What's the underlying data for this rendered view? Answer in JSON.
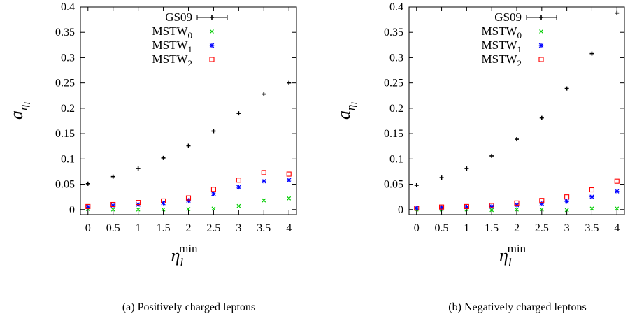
{
  "chart_data": [
    {
      "type": "scatter",
      "caption": "(a) Positively charged leptons",
      "xlabel_main": "η",
      "xlabel_sub": "l",
      "xlabel_sup": "min",
      "ylabel_main": "a",
      "ylabel_sub": "η",
      "ylabel_subsub": "l",
      "xlim": [
        -0.15,
        4.15
      ],
      "ylim": [
        -0.01,
        0.4
      ],
      "xticks": [
        "0",
        "0.5",
        "1",
        "1.5",
        "2",
        "2.5",
        "3",
        "3.5",
        "4"
      ],
      "yticks": [
        "0",
        "0.05",
        "0.1",
        "0.15",
        "0.2",
        "0.25",
        "0.3",
        "0.35",
        "0.4"
      ],
      "legend": [
        {
          "base": "GS09",
          "sub": ""
        },
        {
          "base": "MSTW",
          "sub": "0"
        },
        {
          "base": "MSTW",
          "sub": "1"
        },
        {
          "base": "MSTW",
          "sub": "2"
        }
      ],
      "legend_position": "top-center",
      "series": [
        {
          "marker": "plus-errorbar",
          "color": "#000000",
          "x": [
            0,
            0.5,
            1,
            1.5,
            2,
            2.5,
            3,
            3.5,
            4
          ],
          "y": [
            0.051,
            0.065,
            0.081,
            0.102,
            0.126,
            0.155,
            0.19,
            0.228,
            0.25
          ]
        },
        {
          "marker": "cross",
          "color": "#00cc00",
          "x": [
            0,
            0.5,
            1,
            1.5,
            2,
            2.5,
            3,
            3.5,
            4
          ],
          "y": [
            0.001,
            0.0,
            0.0,
            0.0,
            0.001,
            0.002,
            0.007,
            0.018,
            0.022
          ]
        },
        {
          "marker": "star",
          "color": "#0000ff",
          "x": [
            0,
            0.5,
            1,
            1.5,
            2,
            2.5,
            3,
            3.5,
            4
          ],
          "y": [
            0.005,
            0.008,
            0.01,
            0.013,
            0.018,
            0.031,
            0.044,
            0.056,
            0.058
          ]
        },
        {
          "marker": "square",
          "color": "#ff0000",
          "x": [
            0,
            0.5,
            1,
            1.5,
            2,
            2.5,
            3,
            3.5,
            4
          ],
          "y": [
            0.006,
            0.01,
            0.014,
            0.017,
            0.023,
            0.04,
            0.058,
            0.073,
            0.07
          ]
        }
      ]
    },
    {
      "type": "scatter",
      "caption": "(b) Negatively charged leptons",
      "xlabel_main": "η",
      "xlabel_sub": "l",
      "xlabel_sup": "min",
      "ylabel_main": "a",
      "ylabel_sub": "η",
      "ylabel_subsub": "l",
      "xlim": [
        -0.15,
        4.15
      ],
      "ylim": [
        -0.01,
        0.4
      ],
      "xticks": [
        "0",
        "0.5",
        "1",
        "1.5",
        "2",
        "2.5",
        "3",
        "3.5",
        "4"
      ],
      "yticks": [
        "0",
        "0.05",
        "0.1",
        "0.15",
        "0.2",
        "0.25",
        "0.3",
        "0.35",
        "0.4"
      ],
      "legend": [
        {
          "base": "GS09",
          "sub": ""
        },
        {
          "base": "MSTW",
          "sub": "0"
        },
        {
          "base": "MSTW",
          "sub": "1"
        },
        {
          "base": "MSTW",
          "sub": "2"
        }
      ],
      "legend_position": "top-center",
      "series": [
        {
          "marker": "plus-errorbar",
          "color": "#000000",
          "x": [
            0,
            0.5,
            1,
            1.5,
            2,
            2.5,
            3,
            3.5,
            4
          ],
          "y": [
            0.048,
            0.063,
            0.081,
            0.106,
            0.139,
            0.181,
            0.239,
            0.308,
            0.388
          ]
        },
        {
          "marker": "cross",
          "color": "#00cc00",
          "x": [
            0,
            0.5,
            1,
            1.5,
            2,
            2.5,
            3,
            3.5,
            4
          ],
          "y": [
            0.0,
            0.0,
            0.0,
            -0.001,
            0.0,
            0.0,
            -0.001,
            0.002,
            0.002
          ]
        },
        {
          "marker": "star",
          "color": "#0000ff",
          "x": [
            0,
            0.5,
            1,
            1.5,
            2,
            2.5,
            3,
            3.5,
            4
          ],
          "y": [
            0.003,
            0.004,
            0.005,
            0.006,
            0.009,
            0.012,
            0.016,
            0.025,
            0.036
          ]
        },
        {
          "marker": "square",
          "color": "#ff0000",
          "x": [
            0,
            0.5,
            1,
            1.5,
            2,
            2.5,
            3,
            3.5,
            4
          ],
          "y": [
            0.003,
            0.005,
            0.006,
            0.008,
            0.013,
            0.018,
            0.025,
            0.039,
            0.056
          ]
        }
      ]
    }
  ]
}
